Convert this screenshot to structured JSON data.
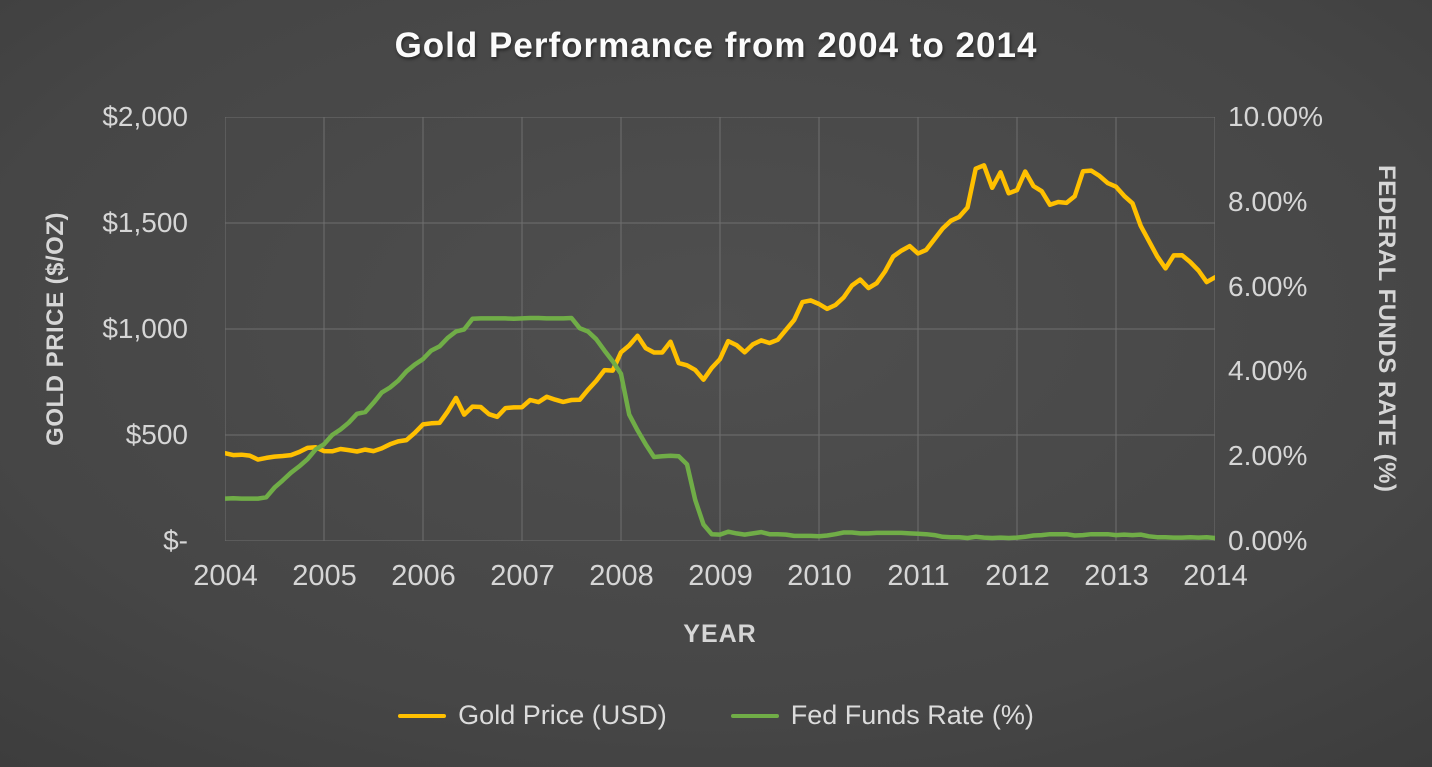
{
  "title": "Gold Performance from 2004 to 2014",
  "chart_data": {
    "type": "line",
    "title": "Gold Performance from 2004 to 2014",
    "xlabel": "YEAR",
    "ylabel_left": "GOLD PRICE ($/OZ)",
    "ylabel_right": "FEDERAL FUNDS RATE (%)",
    "grid": true,
    "legend_position": "bottom",
    "background": "dark-gray-gradient",
    "x_range": [
      2004,
      2014
    ],
    "x_start": 2004,
    "x_step": 0.0833333,
    "x_ticks": [
      2004,
      2005,
      2006,
      2007,
      2008,
      2009,
      2010,
      2011,
      2012,
      2013,
      2014
    ],
    "y_left_range": [
      0,
      2000
    ],
    "y_left_ticks": [
      "$-",
      "$500",
      "$1,000",
      "$1,500",
      "$2,000"
    ],
    "y_right_range": [
      0,
      10
    ],
    "y_right_ticks": [
      "0.00%",
      "2.00%",
      "4.00%",
      "6.00%",
      "8.00%",
      "10.00%"
    ],
    "series": [
      {
        "name": "Gold Price (USD)",
        "axis": "left",
        "color": "#FFC000",
        "width": 4.5,
        "values": [
          414,
          405,
          407,
          403,
          384,
          392,
          398,
          401,
          405,
          420,
          439,
          442,
          424,
          423,
          434,
          429,
          422,
          431,
          424,
          437,
          456,
          470,
          476,
          510,
          550,
          555,
          557,
          611,
          675,
          596,
          634,
          632,
          598,
          586,
          627,
          630,
          631,
          665,
          655,
          680,
          667,
          656,
          665,
          666,
          713,
          755,
          806,
          804,
          890,
          922,
          968,
          910,
          889,
          889,
          940,
          839,
          829,
          807,
          761,
          816,
          858,
          943,
          924,
          890,
          928,
          946,
          934,
          949,
          996,
          1043,
          1127,
          1135,
          1118,
          1095,
          1113,
          1149,
          1205,
          1233,
          1193,
          1216,
          1271,
          1342,
          1370,
          1391,
          1356,
          1373,
          1424,
          1474,
          1511,
          1529,
          1573,
          1756,
          1772,
          1666,
          1739,
          1640,
          1655,
          1743,
          1674,
          1650,
          1586,
          1599,
          1595,
          1626,
          1744,
          1747,
          1722,
          1688,
          1671,
          1628,
          1593,
          1487,
          1414,
          1343,
          1286,
          1347,
          1348,
          1316,
          1276,
          1221,
          1244
        ]
      },
      {
        "name": "Fed Funds Rate (%)",
        "axis": "right",
        "color": "#70AD47",
        "width": 4.5,
        "values": [
          1.0,
          1.01,
          1.0,
          1.0,
          1.0,
          1.03,
          1.26,
          1.43,
          1.61,
          1.76,
          1.93,
          2.16,
          2.28,
          2.5,
          2.63,
          2.79,
          3.0,
          3.04,
          3.26,
          3.5,
          3.62,
          3.78,
          4.0,
          4.16,
          4.29,
          4.49,
          4.59,
          4.79,
          4.94,
          4.99,
          5.24,
          5.25,
          5.25,
          5.25,
          5.25,
          5.24,
          5.25,
          5.26,
          5.26,
          5.25,
          5.25,
          5.25,
          5.26,
          5.02,
          4.94,
          4.76,
          4.49,
          4.24,
          3.94,
          2.98,
          2.61,
          2.28,
          1.98,
          2.0,
          2.01,
          2.0,
          1.81,
          0.97,
          0.39,
          0.16,
          0.15,
          0.22,
          0.18,
          0.15,
          0.18,
          0.21,
          0.16,
          0.16,
          0.15,
          0.12,
          0.12,
          0.12,
          0.11,
          0.13,
          0.16,
          0.2,
          0.2,
          0.18,
          0.18,
          0.19,
          0.19,
          0.19,
          0.19,
          0.18,
          0.17,
          0.16,
          0.14,
          0.1,
          0.09,
          0.09,
          0.07,
          0.1,
          0.08,
          0.07,
          0.08,
          0.07,
          0.08,
          0.1,
          0.13,
          0.14,
          0.16,
          0.16,
          0.16,
          0.13,
          0.14,
          0.16,
          0.16,
          0.16,
          0.14,
          0.15,
          0.14,
          0.15,
          0.11,
          0.09,
          0.09,
          0.08,
          0.08,
          0.09,
          0.08,
          0.09,
          0.07
        ]
      }
    ]
  }
}
